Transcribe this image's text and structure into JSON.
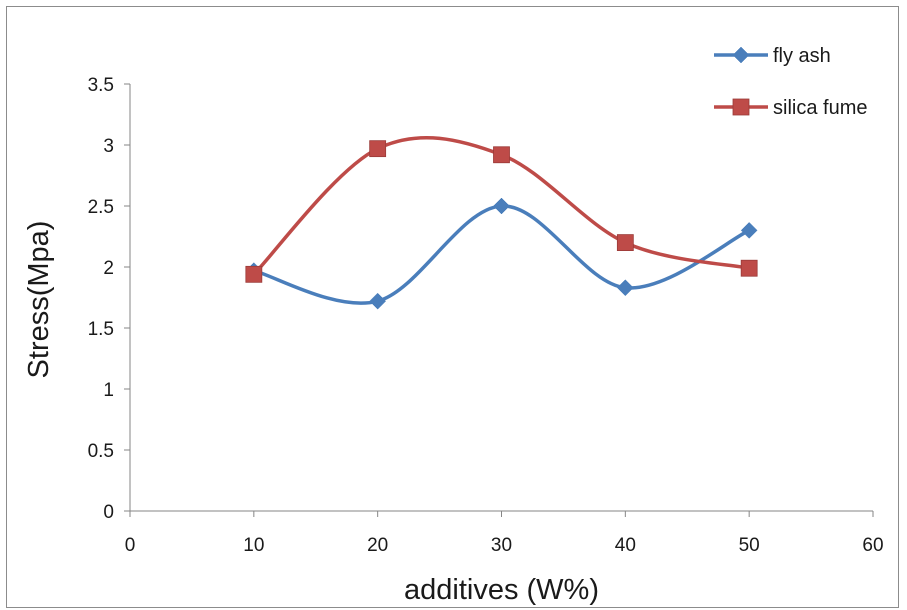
{
  "chart_data": {
    "type": "line",
    "title": "",
    "xlabel": "additives (W%)",
    "ylabel": "Stress(Mpa)",
    "xlim": [
      0,
      60
    ],
    "ylim": [
      0,
      3.5
    ],
    "xticks": [
      0,
      10,
      20,
      30,
      40,
      50,
      60
    ],
    "yticks": [
      0,
      0.5,
      1,
      1.5,
      2,
      2.5,
      3,
      3.5
    ],
    "xtick_labels": [
      "0",
      "10",
      "20",
      "30",
      "40",
      "50",
      "60"
    ],
    "ytick_labels": [
      "0",
      "0.5",
      "1",
      "1.5",
      "2",
      "2.5",
      "3",
      "3.5"
    ],
    "grid": false,
    "smooth": true,
    "legend_position": "top-right",
    "series": [
      {
        "name": "fly ash",
        "color": "#4a7ebb",
        "marker": "diamond",
        "x": [
          10,
          20,
          30,
          40,
          50
        ],
        "y": [
          1.97,
          1.72,
          2.5,
          1.83,
          2.3
        ]
      },
      {
        "name": "silica fume",
        "color": "#be4b48",
        "marker": "square",
        "x": [
          10,
          20,
          30,
          40,
          50
        ],
        "y": [
          1.94,
          2.97,
          2.92,
          2.2,
          1.99
        ]
      }
    ]
  }
}
